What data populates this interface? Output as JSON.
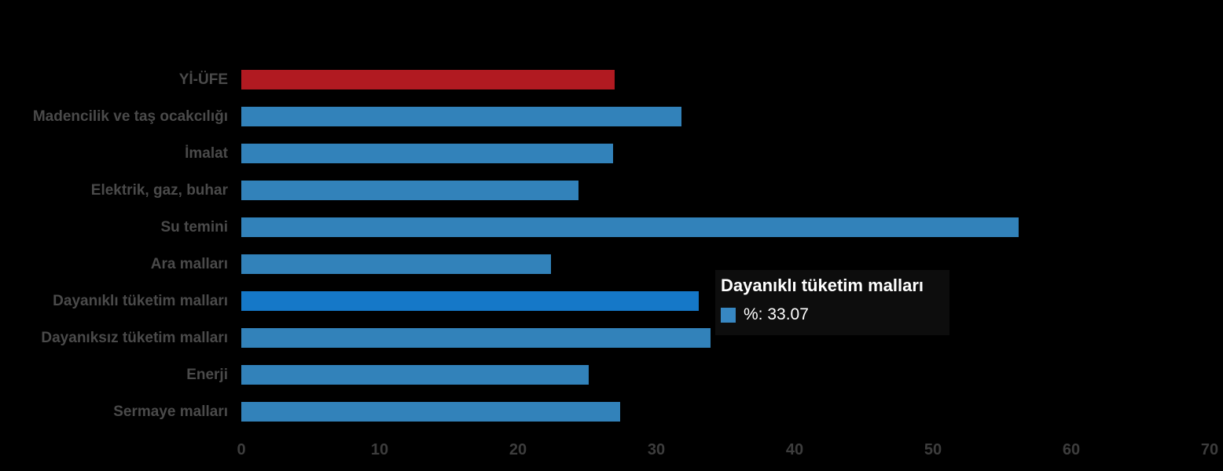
{
  "chart_data": {
    "type": "bar",
    "orientation": "horizontal",
    "title": "",
    "xlabel": "",
    "ylabel": "",
    "xlim": [
      0,
      70
    ],
    "x_ticks": [
      "0",
      "10",
      "20",
      "30",
      "40",
      "50",
      "60",
      "70"
    ],
    "x_tick_values": [
      0,
      10,
      20,
      30,
      40,
      50,
      60,
      70
    ],
    "grid": false,
    "legend": false,
    "series_name": "%",
    "categories": [
      "Yİ-ÜFE",
      "Madencilik ve taş ocakcılığı",
      "İmalat",
      "Elektrik, gaz, buhar",
      "Su temini",
      "Ara malları",
      "Dayanıklı tüketim malları",
      "Dayanıksız tüketim malları",
      "Enerji",
      "Sermaye malları"
    ],
    "values": [
      27.0,
      31.8,
      26.9,
      24.4,
      56.2,
      22.4,
      33.07,
      33.9,
      25.1,
      27.4
    ],
    "bar_color_keys": [
      "special",
      "default",
      "default",
      "default",
      "default",
      "default",
      "highlight",
      "default",
      "default",
      "default"
    ],
    "highlighted_index": 6
  },
  "tooltip": {
    "title": "Dayanıklı tüketim malları",
    "value_label": "%: 33.07"
  },
  "colors": {
    "background": "#000000",
    "bar_default": "#3282BA",
    "bar_highlight": "#1578C8",
    "bar_special": "#B11A21",
    "label_text": "#4A4A4A",
    "tick_text": "#3D3D3D",
    "tooltip_bg": "#0D0D0D",
    "tooltip_text": "#FFFFFF",
    "tooltip_swatch": "#3787C2"
  }
}
